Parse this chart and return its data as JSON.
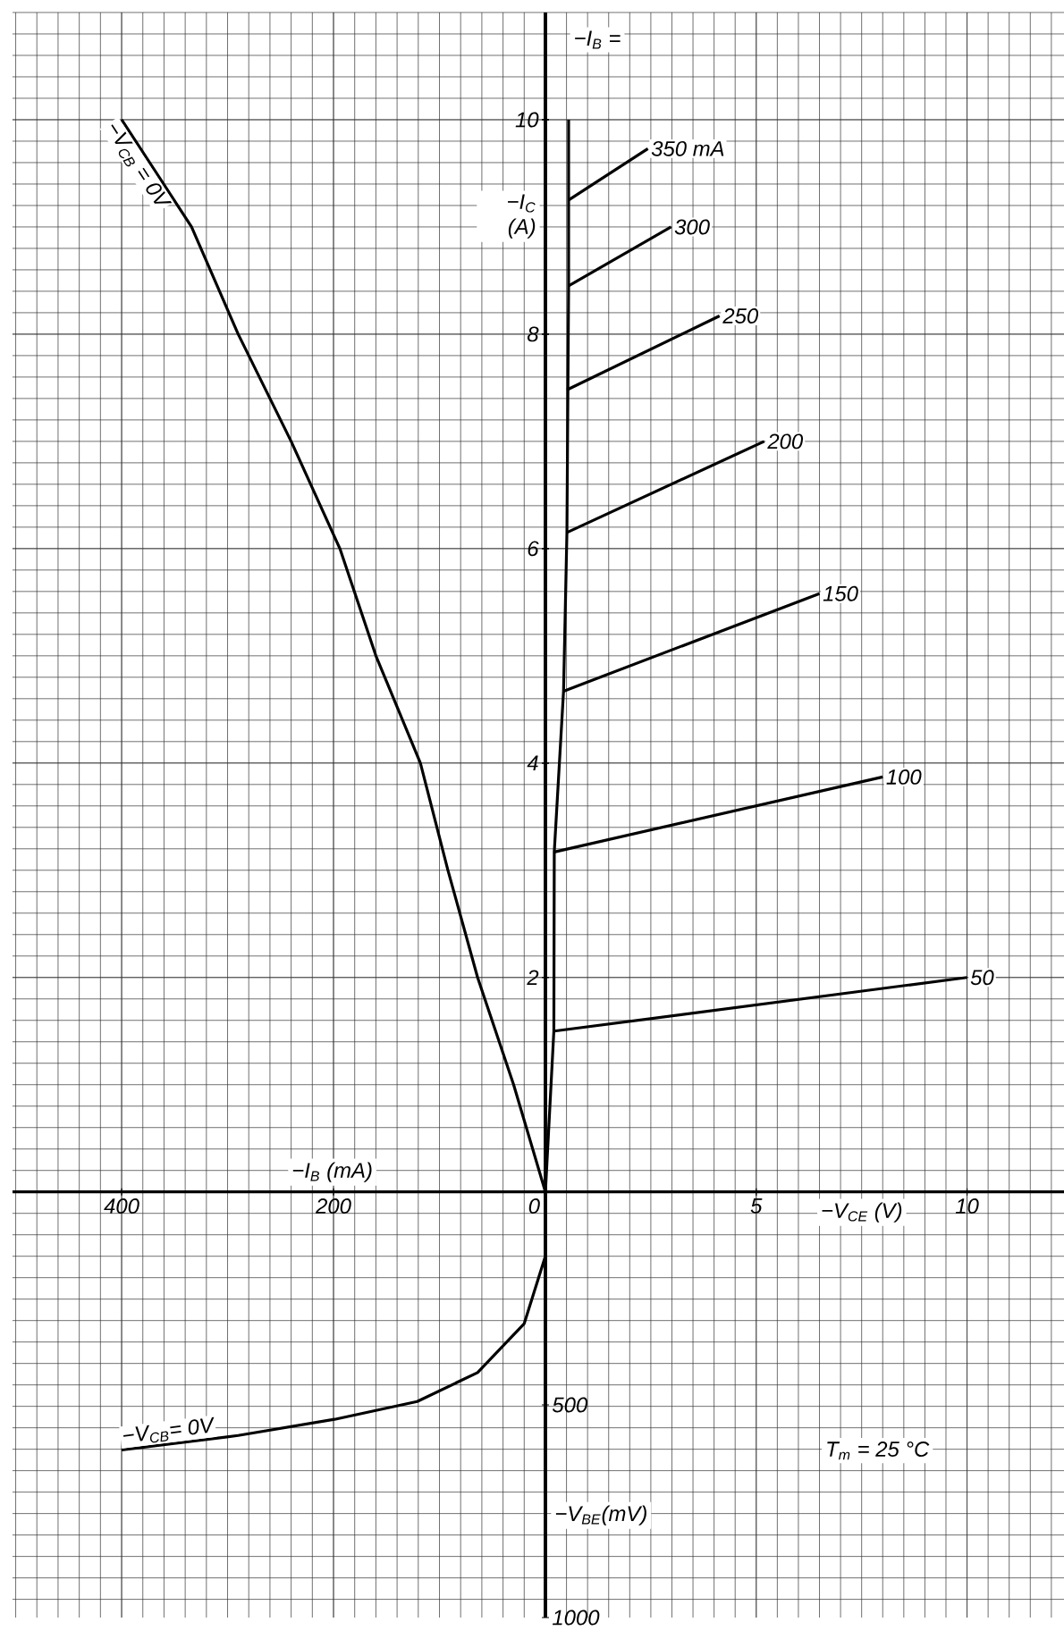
{
  "chart_data": [
    {
      "type": "line",
      "xlabel": "−V$_{CE}$ (V)",
      "xlim": [
        0,
        12.3
      ],
      "ylim": [
        -3.97,
        11
      ],
      "xticks": [
        5,
        10
      ],
      "yticks": [
        2,
        4,
        6,
        8,
        10
      ],
      "grid": true,
      "tick_labels": "x",
      "annotations": [
        "−I$_{B}$ =",
        "T$_{m}$ = 25 °C"
      ],
      "series": [
        {
          "color": "#000000",
          "x": [
            0,
            0.2,
            0.21,
            0.43,
            0.51,
            0.55,
            0.55
          ],
          "values": [
            0,
            1.5,
            3.17,
            4.67,
            6.15,
            8.45,
            10
          ]
        },
        {
          "name": "350 mA",
          "color": "#000000",
          "x": [
            0.55,
            2.43
          ],
          "values": [
            9.25,
            9.73
          ]
        },
        {
          "name": "300",
          "color": "#000000",
          "x": [
            0.55,
            2.98
          ],
          "values": [
            8.45,
            9.0
          ]
        },
        {
          "name": "250",
          "color": "#000000",
          "x": [
            0.51,
            4.13
          ],
          "values": [
            7.48,
            8.17
          ]
        },
        {
          "name": "200",
          "color": "#000000",
          "x": [
            0.51,
            5.19
          ],
          "values": [
            6.15,
            7.0
          ]
        },
        {
          "name": "150",
          "color": "#000000",
          "x": [
            0.43,
            6.5
          ],
          "values": [
            4.67,
            5.58
          ]
        },
        {
          "name": "100",
          "color": "#000000",
          "x": [
            0.21,
            8.0
          ],
          "values": [
            3.17,
            3.87
          ]
        },
        {
          "name": "50",
          "color": "#000000",
          "x": [
            0.21,
            10.0
          ],
          "values": [
            1.5,
            2.0
          ]
        }
      ]
    },
    {
      "type": "line",
      "xlabel": "−I$_{B}$ (mA)",
      "ylabel": "−I$_{C}$ (A)",
      "y2label": "−V$_{BE}$(mV)",
      "xlim": [
        503,
        0
      ],
      "ylim": [
        -3.97,
        11
      ],
      "y2lim": [
        1000,
        -2773
      ],
      "xticks": [
        400,
        200,
        0
      ],
      "yticks": [
        2,
        4,
        6,
        8,
        10
      ],
      "y2ticks": [
        500,
        1000
      ],
      "grid": true,
      "series": [
        {
          "name": "−V$_{CB}$ = 0V",
          "color": "#000000",
          "x": [
            400,
            334,
            290,
            240,
            194,
            160,
            118,
            92,
            64,
            30,
            0
          ],
          "values": [
            10,
            9,
            8,
            7,
            6,
            5,
            4,
            3,
            2,
            1,
            0
          ]
        },
        {
          "name": "−V$_{CB}$= 0V",
          "color": "#000000",
          "axis": "y2",
          "x": [
            0,
            20,
            64,
            121,
            199,
            290,
            400
          ],
          "values": [
            150,
            309,
            424,
            492,
            534,
            572,
            606
          ]
        }
      ]
    }
  ]
}
